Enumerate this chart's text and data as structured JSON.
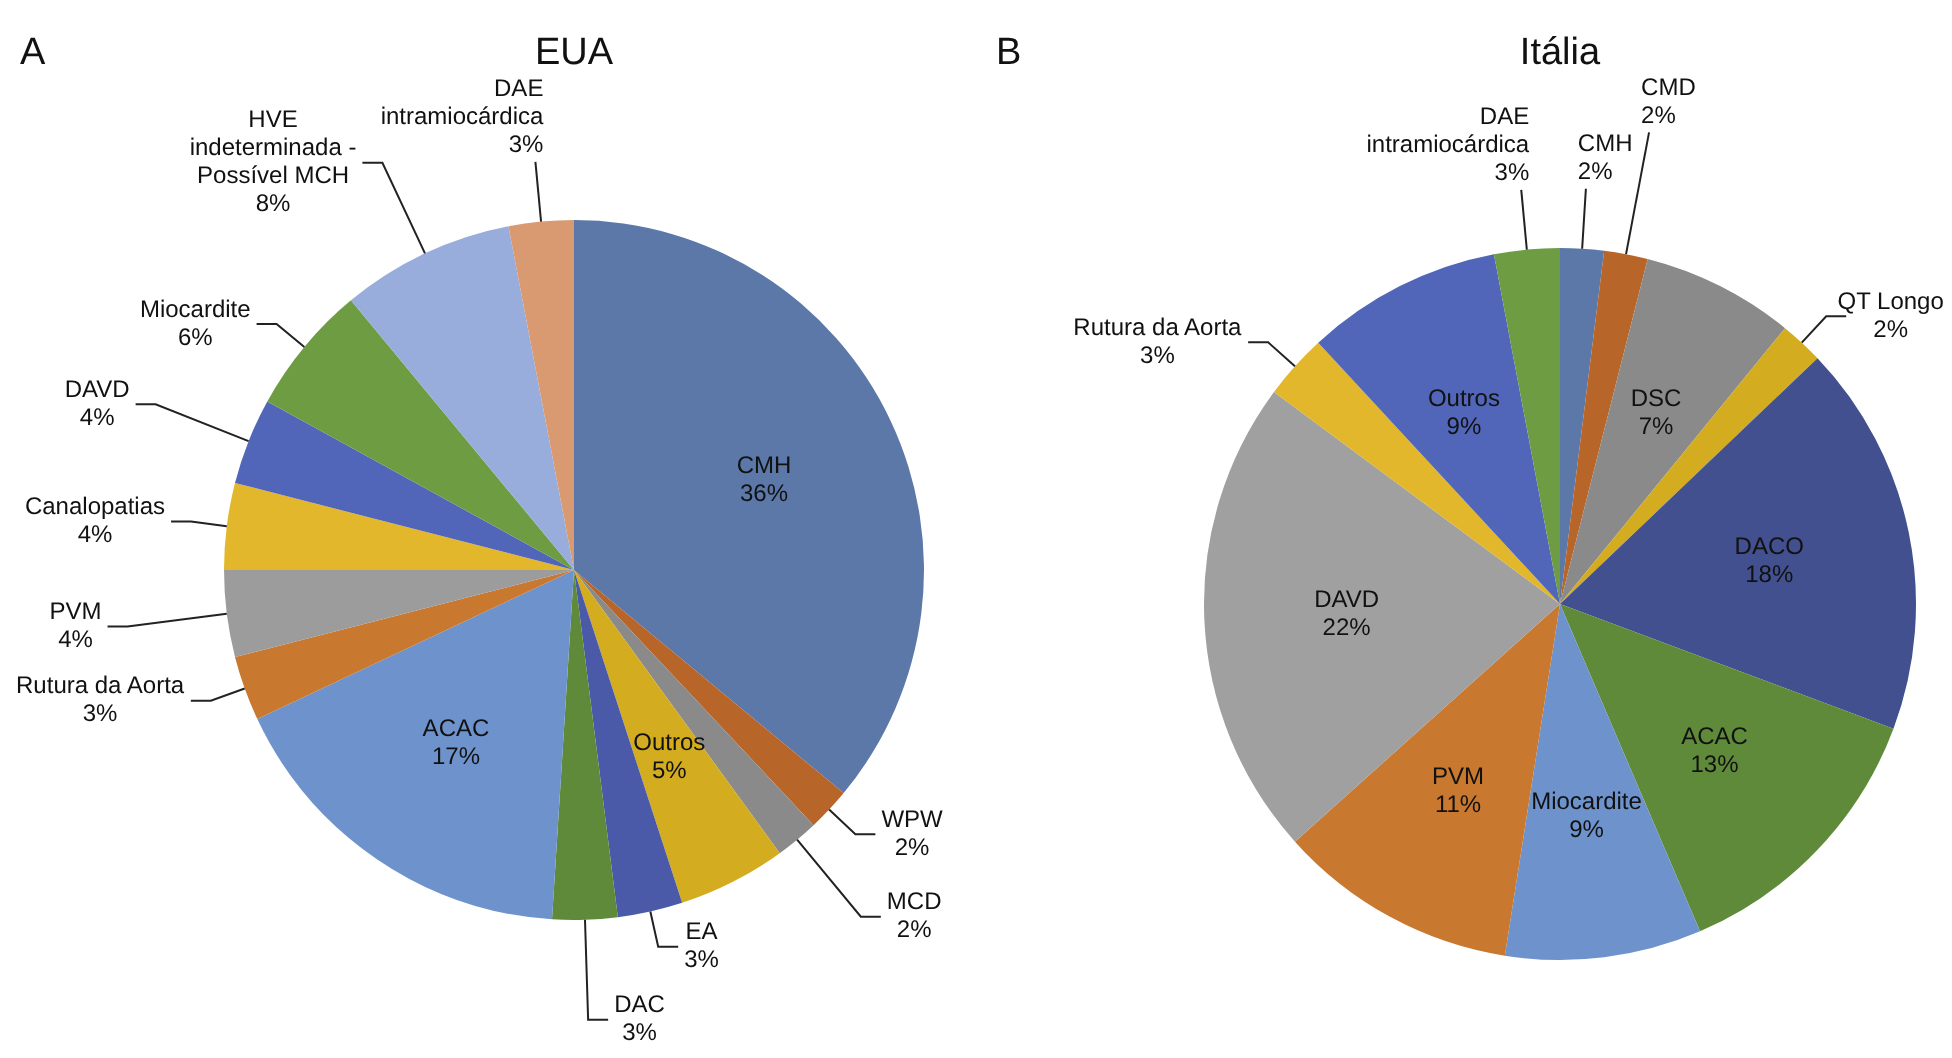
{
  "chart_data": [
    {
      "type": "pie",
      "title": "EUA",
      "annotations": [
        "A"
      ],
      "categories": [
        "CMH",
        "WPW",
        "MCD",
        "Outros",
        "EA",
        "DAC",
        "ACAC",
        "Rutura da Aorta",
        "PVM",
        "Canalopatias",
        "DAVD",
        "Miocardite",
        "HVE indeterminada - Possível MCH",
        "DAE intramiocárdica"
      ],
      "values": [
        36,
        2,
        2,
        5,
        3,
        3,
        17,
        3,
        4,
        4,
        4,
        6,
        8,
        3
      ],
      "value_labels": [
        "36%",
        "2%",
        "2%",
        "5%",
        "3%",
        "3%",
        "17%",
        "3%",
        "4%",
        "4%",
        "4%",
        "6%",
        "8%",
        "3%"
      ],
      "colors": [
        "#5b78a8",
        "#b8652a",
        "#8a8a8a",
        "#d4ac1f",
        "#4a5aa8",
        "#5f8a3a",
        "#6e93cc",
        "#c9782f",
        "#9c9c9c",
        "#e2b72b",
        "#5166b8",
        "#6e9c42",
        "#98addb",
        "#d99a72"
      ]
    },
    {
      "type": "pie",
      "title": "Itália",
      "annotations": [
        "B"
      ],
      "categories": [
        "CMH",
        "CMD",
        "DSC",
        "QT Longo",
        "DACO",
        "ACAC",
        "Miocardite",
        "PVM",
        "DAVD",
        "Rutura da Aorta",
        "Outros",
        "DAE intramiocárdica"
      ],
      "values": [
        2,
        2,
        7,
        2,
        18,
        13,
        9,
        11,
        22,
        3,
        9,
        3
      ],
      "value_labels": [
        "2%",
        "2%",
        "7%",
        "2%",
        "18%",
        "13%",
        "9%",
        "11%",
        "22%",
        "3%",
        "9%",
        "3%"
      ],
      "colors": [
        "#5b78a8",
        "#b8652a",
        "#8a8a8a",
        "#d4ac1f",
        "#42508f",
        "#5f8a3a",
        "#6e93cc",
        "#c9782f",
        "#a0a0a0",
        "#e2b72b",
        "#5166b8",
        "#6e9c42"
      ]
    }
  ]
}
